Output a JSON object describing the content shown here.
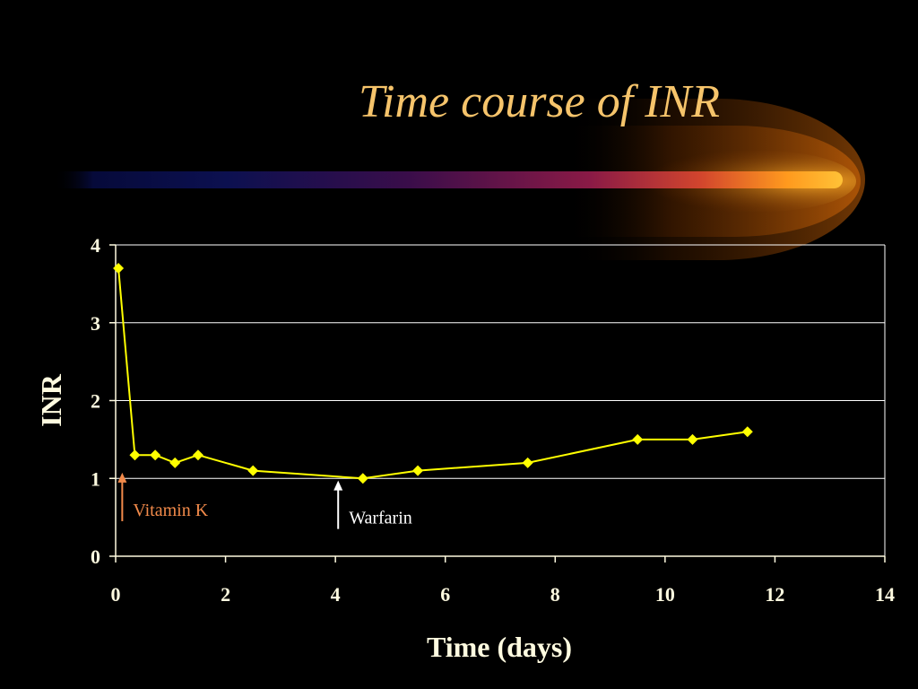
{
  "slide": {
    "title": "Time course of INR"
  },
  "colors": {
    "background": "#000000",
    "title": "#f6c46b",
    "series": "#ffff00",
    "axis_text": "#fffbe0",
    "grid": "#ffffff",
    "vitamin_k": "#f28a4a",
    "warfarin": "#ffffff"
  },
  "chart_data": {
    "type": "line",
    "title": "",
    "xlabel": "Time (days)",
    "ylabel": "INR",
    "xlim": [
      0,
      14
    ],
    "ylim": [
      0,
      4
    ],
    "x_ticks": [
      "0",
      "2",
      "4",
      "6",
      "8",
      "10",
      "12",
      "14"
    ],
    "y_ticks": [
      "0",
      "1",
      "2",
      "3",
      "4"
    ],
    "grid": "horizontal",
    "legend": "none",
    "marker": "diamond",
    "series": [
      {
        "x": [
          0.05,
          0.35,
          0.72,
          1.08,
          1.5,
          2.5,
          4.5,
          5.5,
          7.5,
          9.5,
          10.5,
          11.5
        ],
        "y": [
          3.7,
          1.3,
          1.3,
          1.2,
          1.3,
          1.1,
          1.0,
          1.1,
          1.2,
          1.5,
          1.5,
          1.6
        ]
      }
    ],
    "annotations": [
      {
        "name": "vitamin-k",
        "text": "Vitamin K",
        "x": 0.12,
        "arrow_y": [
          0.45,
          1.05
        ],
        "label_y": 0.6
      },
      {
        "name": "warfarin",
        "text": "Warfarin",
        "x": 4.05,
        "arrow_y": [
          0.35,
          0.95
        ],
        "label_y": 0.5
      }
    ]
  }
}
